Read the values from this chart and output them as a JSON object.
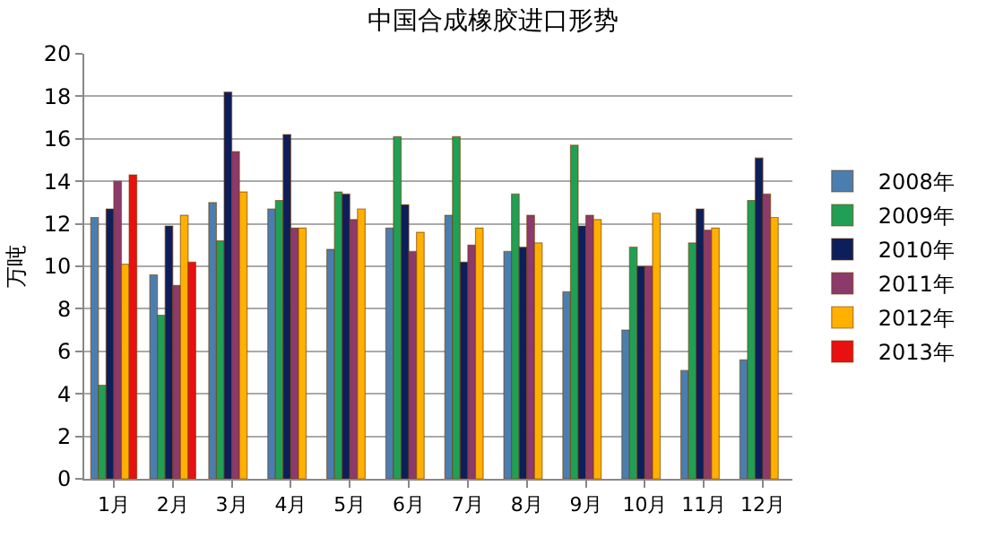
{
  "chart_data": {
    "type": "bar",
    "title": "中国合成橡胶进口形势",
    "ylabel": "万吨",
    "categories": [
      "1月",
      "2月",
      "3月",
      "4月",
      "5月",
      "6月",
      "7月",
      "8月",
      "9月",
      "10月",
      "11月",
      "12月"
    ],
    "series": [
      {
        "name": "2008年",
        "color": "#4a7eb0",
        "values": [
          12.3,
          9.6,
          13.0,
          12.7,
          10.8,
          11.8,
          12.4,
          10.7,
          8.8,
          7.0,
          5.1,
          5.6
        ]
      },
      {
        "name": "2009年",
        "color": "#1fa055",
        "values": [
          4.4,
          7.7,
          11.2,
          13.1,
          13.5,
          16.1,
          16.1,
          13.4,
          15.7,
          10.9,
          11.1,
          13.1
        ]
      },
      {
        "name": "2010年",
        "color": "#0c1f5c",
        "values": [
          12.7,
          11.9,
          18.2,
          16.2,
          13.4,
          12.9,
          10.2,
          10.9,
          11.9,
          10.0,
          12.7,
          15.1
        ]
      },
      {
        "name": "2011年",
        "color": "#8b3a6b",
        "values": [
          14.0,
          9.1,
          15.4,
          11.8,
          12.2,
          10.7,
          11.0,
          12.4,
          12.4,
          10.0,
          11.7,
          13.4
        ]
      },
      {
        "name": "2012年",
        "color": "#ffb000",
        "values": [
          10.1,
          12.4,
          13.5,
          11.8,
          12.7,
          11.6,
          11.8,
          11.1,
          12.2,
          12.5,
          11.8,
          12.3
        ]
      },
      {
        "name": "2013年",
        "color": "#e81010",
        "values": [
          14.3,
          10.2,
          null,
          null,
          null,
          null,
          null,
          null,
          null,
          null,
          null,
          null
        ]
      }
    ],
    "ylim": [
      0,
      20
    ],
    "yticks": [
      0,
      2,
      4,
      6,
      8,
      10,
      12,
      14,
      16,
      18,
      20
    ],
    "grid": "y",
    "legend": "right"
  }
}
